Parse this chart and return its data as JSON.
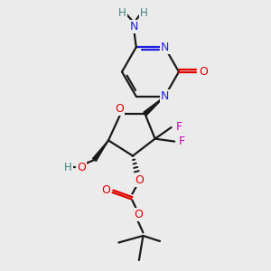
{
  "bg_color": "#ebebeb",
  "bond_color": "#1a1a1a",
  "N_color": "#2020e0",
  "O_color": "#e00000",
  "F_color": "#cc00bb",
  "H_color": "#408080",
  "figsize": [
    3.0,
    3.0
  ],
  "dpi": 100,
  "xlim": [
    0,
    10
  ],
  "ylim": [
    0,
    10
  ]
}
